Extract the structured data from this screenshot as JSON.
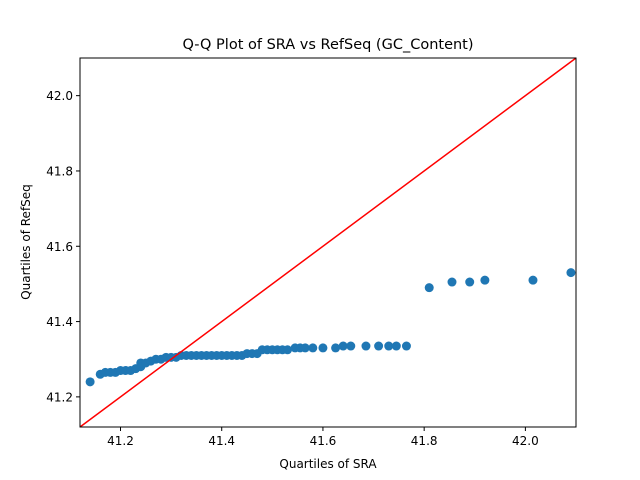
{
  "chart_data": {
    "type": "scatter",
    "title": "Q-Q Plot of SRA vs RefSeq (GC_Content)",
    "xlabel": "Quartiles of SRA",
    "ylabel": "Quartiles of RefSeq",
    "xlim": [
      41.12,
      42.1
    ],
    "ylim": [
      41.12,
      42.1
    ],
    "xticks": [
      41.2,
      41.4,
      41.6,
      41.8,
      42.0
    ],
    "yticks": [
      41.2,
      41.4,
      41.6,
      41.8,
      42.0
    ],
    "xtick_labels": [
      "41.2",
      "41.4",
      "41.6",
      "41.8",
      "42.0"
    ],
    "ytick_labels": [
      "41.2",
      "41.4",
      "41.6",
      "41.8",
      "42.0"
    ],
    "grid": false,
    "reference_line": {
      "x": [
        41.12,
        42.1
      ],
      "y": [
        41.12,
        42.1
      ],
      "color": "#ff0000"
    },
    "point_color": "#1f77b4",
    "points": [
      [
        41.14,
        41.24
      ],
      [
        41.16,
        41.26
      ],
      [
        41.17,
        41.265
      ],
      [
        41.18,
        41.265
      ],
      [
        41.19,
        41.265
      ],
      [
        41.2,
        41.27
      ],
      [
        41.21,
        41.27
      ],
      [
        41.22,
        41.27
      ],
      [
        41.23,
        41.275
      ],
      [
        41.24,
        41.28
      ],
      [
        41.24,
        41.29
      ],
      [
        41.25,
        41.29
      ],
      [
        41.26,
        41.295
      ],
      [
        41.27,
        41.3
      ],
      [
        41.28,
        41.3
      ],
      [
        41.29,
        41.305
      ],
      [
        41.3,
        41.305
      ],
      [
        41.31,
        41.305
      ],
      [
        41.32,
        41.31
      ],
      [
        41.33,
        41.31
      ],
      [
        41.34,
        41.31
      ],
      [
        41.35,
        41.31
      ],
      [
        41.36,
        41.31
      ],
      [
        41.37,
        41.31
      ],
      [
        41.38,
        41.31
      ],
      [
        41.39,
        41.31
      ],
      [
        41.4,
        41.31
      ],
      [
        41.41,
        41.31
      ],
      [
        41.42,
        41.31
      ],
      [
        41.43,
        41.31
      ],
      [
        41.44,
        41.31
      ],
      [
        41.45,
        41.315
      ],
      [
        41.46,
        41.315
      ],
      [
        41.47,
        41.315
      ],
      [
        41.48,
        41.325
      ],
      [
        41.49,
        41.325
      ],
      [
        41.5,
        41.325
      ],
      [
        41.51,
        41.325
      ],
      [
        41.52,
        41.325
      ],
      [
        41.53,
        41.325
      ],
      [
        41.545,
        41.33
      ],
      [
        41.555,
        41.33
      ],
      [
        41.565,
        41.33
      ],
      [
        41.58,
        41.33
      ],
      [
        41.6,
        41.33
      ],
      [
        41.625,
        41.33
      ],
      [
        41.64,
        41.335
      ],
      [
        41.655,
        41.335
      ],
      [
        41.685,
        41.335
      ],
      [
        41.71,
        41.335
      ],
      [
        41.73,
        41.335
      ],
      [
        41.745,
        41.335
      ],
      [
        41.765,
        41.335
      ],
      [
        41.81,
        41.49
      ],
      [
        41.855,
        41.505
      ],
      [
        41.89,
        41.505
      ],
      [
        41.92,
        41.51
      ],
      [
        42.015,
        41.51
      ],
      [
        42.09,
        41.53
      ]
    ]
  }
}
